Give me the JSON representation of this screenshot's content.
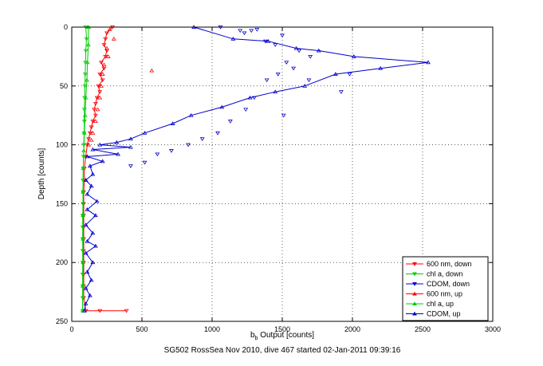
{
  "chart_data": {
    "type": "scatter",
    "title": "",
    "xlabel_main": "b",
    "xlabel_sub": "b",
    "xlabel_rest": " Output [counts]",
    "ylabel": "Depth [counts]",
    "caption": "SG502 RossSea Nov 2010, dive 467 started 02-Jan-2011 09:39:16",
    "xlim": [
      0,
      3000
    ],
    "ylim": [
      0,
      250
    ],
    "y_reversed": true,
    "grid": true,
    "xticks": [
      0,
      500,
      1000,
      1500,
      2000,
      2500,
      3000
    ],
    "yticks": [
      0,
      50,
      100,
      150,
      200,
      250
    ],
    "legend_position": "bottom-right",
    "series": [
      {
        "name": "600 nm, down",
        "color": "#ff0000",
        "marker": "triangle-down",
        "line": true,
        "points": [
          [
            290,
            0
          ],
          [
            250,
            5
          ],
          [
            240,
            10
          ],
          [
            230,
            15
          ],
          [
            250,
            20
          ],
          [
            240,
            25
          ],
          [
            210,
            30
          ],
          [
            230,
            35
          ],
          [
            200,
            40
          ],
          [
            220,
            45
          ],
          [
            190,
            50
          ],
          [
            200,
            55
          ],
          [
            180,
            60
          ],
          [
            170,
            65
          ],
          [
            160,
            70
          ],
          [
            170,
            75
          ],
          [
            150,
            80
          ],
          [
            140,
            85
          ],
          [
            130,
            90
          ],
          [
            120,
            95
          ],
          [
            110,
            100
          ],
          [
            100,
            110
          ],
          [
            90,
            120
          ],
          [
            90,
            130
          ],
          [
            85,
            140
          ],
          [
            85,
            150
          ],
          [
            85,
            160
          ],
          [
            85,
            170
          ],
          [
            85,
            180
          ],
          [
            85,
            190
          ],
          [
            85,
            200
          ],
          [
            85,
            210
          ],
          [
            85,
            220
          ],
          [
            85,
            230
          ],
          [
            100,
            241
          ],
          [
            200,
            241
          ],
          [
            390,
            241
          ]
        ]
      },
      {
        "name": "chl a, down",
        "color": "#00cc00",
        "marker": "triangle-down",
        "line": true,
        "points": [
          [
            100,
            0
          ],
          [
            105,
            10
          ],
          [
            100,
            20
          ],
          [
            98,
            30
          ],
          [
            96,
            40
          ],
          [
            94,
            50
          ],
          [
            92,
            60
          ],
          [
            90,
            70
          ],
          [
            90,
            80
          ],
          [
            88,
            90
          ],
          [
            86,
            100
          ],
          [
            84,
            110
          ],
          [
            82,
            120
          ],
          [
            80,
            130
          ],
          [
            80,
            140
          ],
          [
            80,
            150
          ],
          [
            78,
            160
          ],
          [
            78,
            170
          ],
          [
            78,
            180
          ],
          [
            78,
            190
          ],
          [
            78,
            200
          ],
          [
            78,
            210
          ],
          [
            78,
            220
          ],
          [
            78,
            230
          ],
          [
            78,
            241
          ]
        ]
      },
      {
        "name": "CDOM, down",
        "color": "#0000cc",
        "marker": "triangle-down",
        "line": false,
        "points": [
          [
            1060,
            0
          ],
          [
            1200,
            3
          ],
          [
            1230,
            5
          ],
          [
            1280,
            3
          ],
          [
            1320,
            2
          ],
          [
            1500,
            7
          ],
          [
            1380,
            12
          ],
          [
            1450,
            15
          ],
          [
            1620,
            20
          ],
          [
            1700,
            25
          ],
          [
            1530,
            30
          ],
          [
            1580,
            35
          ],
          [
            1470,
            40
          ],
          [
            1980,
            40
          ],
          [
            1390,
            45
          ],
          [
            1690,
            45
          ],
          [
            1920,
            55
          ],
          [
            1300,
            60
          ],
          [
            1240,
            70
          ],
          [
            1510,
            75
          ],
          [
            1130,
            80
          ],
          [
            1040,
            90
          ],
          [
            930,
            95
          ],
          [
            830,
            100
          ],
          [
            710,
            105
          ],
          [
            610,
            108
          ],
          [
            520,
            115
          ],
          [
            420,
            118
          ]
        ]
      },
      {
        "name": "600 nm, up",
        "color": "#ff0000",
        "marker": "triangle-up",
        "line": false,
        "points": [
          [
            270,
            2
          ],
          [
            300,
            10
          ],
          [
            250,
            18
          ],
          [
            260,
            25
          ],
          [
            230,
            32
          ],
          [
            220,
            40
          ],
          [
            570,
            37
          ],
          [
            210,
            50
          ],
          [
            200,
            60
          ],
          [
            185,
            70
          ],
          [
            170,
            80
          ],
          [
            150,
            90
          ],
          [
            140,
            96
          ],
          [
            120,
            100
          ]
        ]
      },
      {
        "name": "chl a, up",
        "color": "#00cc00",
        "marker": "triangle-up",
        "line": true,
        "points": [
          [
            120,
            0
          ],
          [
            118,
            15
          ],
          [
            112,
            30
          ],
          [
            108,
            45
          ],
          [
            100,
            60
          ],
          [
            95,
            75
          ],
          [
            90,
            90
          ],
          [
            86,
            105
          ],
          [
            82,
            120
          ],
          [
            80,
            140
          ],
          [
            80,
            160
          ],
          [
            80,
            180
          ],
          [
            80,
            200
          ],
          [
            78,
            220
          ],
          [
            78,
            241
          ]
        ]
      },
      {
        "name": "CDOM, up",
        "color": "#0000cc",
        "marker": "triangle-up",
        "line": true,
        "points": [
          [
            870,
            0
          ],
          [
            1150,
            10
          ],
          [
            1400,
            12
          ],
          [
            1600,
            18
          ],
          [
            1760,
            20
          ],
          [
            2010,
            25
          ],
          [
            2540,
            30
          ],
          [
            2200,
            35
          ],
          [
            1880,
            40
          ],
          [
            1660,
            50
          ],
          [
            1450,
            55
          ],
          [
            1270,
            60
          ],
          [
            1070,
            68
          ],
          [
            850,
            75
          ],
          [
            720,
            82
          ],
          [
            520,
            90
          ],
          [
            420,
            95
          ],
          [
            320,
            98
          ],
          [
            200,
            100
          ],
          [
            420,
            102
          ],
          [
            150,
            104
          ],
          [
            330,
            108
          ],
          [
            110,
            110
          ],
          [
            220,
            114
          ],
          [
            130,
            118
          ],
          [
            150,
            125
          ],
          [
            100,
            130
          ],
          [
            140,
            135
          ],
          [
            110,
            142
          ],
          [
            180,
            148
          ],
          [
            110,
            155
          ],
          [
            170,
            160
          ],
          [
            100,
            168
          ],
          [
            150,
            175
          ],
          [
            110,
            182
          ],
          [
            170,
            186
          ],
          [
            100,
            192
          ],
          [
            150,
            200
          ],
          [
            110,
            208
          ],
          [
            140,
            215
          ],
          [
            100,
            222
          ],
          [
            130,
            228
          ],
          [
            100,
            235
          ],
          [
            90,
            241
          ]
        ]
      }
    ]
  }
}
